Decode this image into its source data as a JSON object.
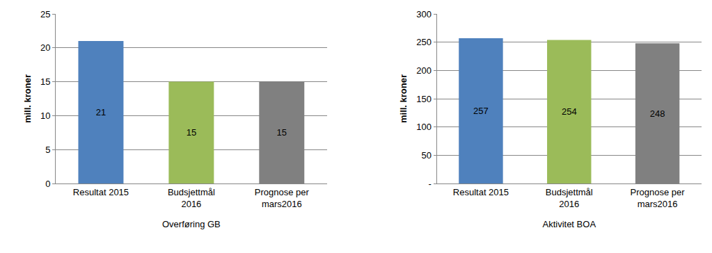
{
  "chart_data": [
    {
      "type": "bar",
      "x_label": "Overføring GB",
      "y_label": "mill. kroner",
      "categories": [
        "Resultat 2015",
        "Budsjettmål\n2016",
        "Prognose per\nmars2016"
      ],
      "values": [
        21,
        15,
        15
      ],
      "colors": [
        "#4f81bd",
        "#9bbb59",
        "#808080"
      ],
      "ylim": [
        0,
        25
      ],
      "yticks": [
        0,
        5,
        10,
        15,
        20,
        25
      ],
      "grid": true,
      "data_labels": true
    },
    {
      "type": "bar",
      "x_label": "Aktivitet BOA",
      "y_label": "mill. kroner",
      "categories": [
        "Resultat 2015",
        "Budsjettmål\n2016",
        "Prognose per\nmars2016"
      ],
      "values": [
        257,
        254,
        248
      ],
      "colors": [
        "#4f81bd",
        "#9bbb59",
        "#808080"
      ],
      "ylim": [
        0,
        300
      ],
      "yticks": [
        {
          "value": 0,
          "label": "-"
        },
        50,
        100,
        150,
        200,
        250,
        300
      ],
      "grid": true,
      "data_labels": true
    }
  ]
}
